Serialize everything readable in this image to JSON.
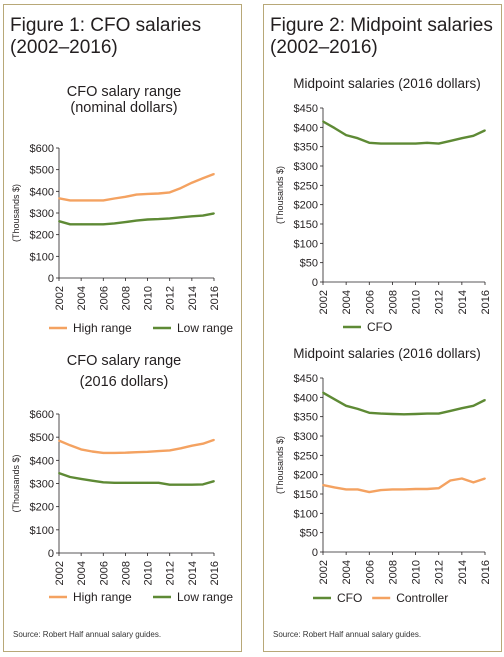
{
  "figures": {
    "fig1": {
      "title_line1": "Figure 1: CFO salaries",
      "title_line2": "(2002–2016)",
      "source": "Source: Robert Half annual salary guides."
    },
    "fig2": {
      "title_line1": "Figure 2: Midpoint salaries",
      "title_line2": "(2002–2016)",
      "source": "Source: Robert Half annual salary guides."
    }
  },
  "colors": {
    "high": "#f4a261",
    "low": "#5e8a35",
    "cfo": "#5e8a35",
    "controller": "#f4a261",
    "axis": "#231f20",
    "border": "#b8a878"
  },
  "chart_data": [
    {
      "id": "c1",
      "type": "line",
      "title": "CFO salary range",
      "subtitle": "(nominal dollars)",
      "ylabel": "(Thousands $)",
      "ylim": [
        0,
        600
      ],
      "yticks": [
        0,
        100,
        200,
        300,
        400,
        500,
        600
      ],
      "ytick_labels": [
        "0",
        "$100",
        "$200",
        "$300",
        "$400",
        "$500",
        "$600"
      ],
      "xticks": [
        2002,
        2004,
        2006,
        2008,
        2010,
        2012,
        2014,
        2016
      ],
      "x": [
        2002,
        2003,
        2004,
        2005,
        2006,
        2007,
        2008,
        2009,
        2010,
        2011,
        2012,
        2013,
        2014,
        2015,
        2016
      ],
      "series": [
        {
          "name": "High range",
          "color": "#f4a261",
          "values": [
            368,
            358,
            358,
            358,
            358,
            367,
            375,
            385,
            388,
            390,
            395,
            415,
            440,
            460,
            480
          ]
        },
        {
          "name": "Low range",
          "color": "#5e8a35",
          "values": [
            262,
            248,
            248,
            248,
            248,
            252,
            258,
            265,
            270,
            272,
            275,
            280,
            285,
            288,
            298
          ]
        }
      ],
      "legend": "bottom"
    },
    {
      "id": "c2",
      "type": "line",
      "title": "CFO salary range",
      "subtitle": "(2016 dollars)",
      "ylabel": "(Thousands $)",
      "ylim": [
        0,
        600
      ],
      "yticks": [
        0,
        100,
        200,
        300,
        400,
        500,
        600
      ],
      "ytick_labels": [
        "0",
        "$100",
        "$200",
        "$300",
        "$400",
        "$500",
        "$600"
      ],
      "xticks": [
        2002,
        2004,
        2006,
        2008,
        2010,
        2012,
        2014,
        2016
      ],
      "x": [
        2002,
        2003,
        2004,
        2005,
        2006,
        2007,
        2008,
        2009,
        2010,
        2011,
        2012,
        2013,
        2014,
        2015,
        2016
      ],
      "series": [
        {
          "name": "High range",
          "color": "#f4a261",
          "values": [
            485,
            465,
            447,
            438,
            432,
            432,
            433,
            435,
            437,
            440,
            443,
            452,
            463,
            472,
            488
          ]
        },
        {
          "name": "Low range",
          "color": "#5e8a35",
          "values": [
            345,
            328,
            320,
            312,
            305,
            303,
            303,
            303,
            303,
            303,
            295,
            295,
            295,
            296,
            310
          ]
        }
      ],
      "legend": "bottom"
    },
    {
      "id": "c3",
      "type": "line",
      "title": "Midpoint salaries (2016 dollars)",
      "subtitle": "",
      "ylabel": "(Thousands $)",
      "ylim": [
        0,
        450
      ],
      "yticks": [
        0,
        50,
        100,
        150,
        200,
        250,
        300,
        350,
        400,
        450
      ],
      "ytick_labels": [
        "0",
        "$50",
        "$100",
        "$150",
        "$200",
        "$250",
        "$300",
        "$350",
        "$400",
        "$450"
      ],
      "xticks": [
        2002,
        2004,
        2006,
        2008,
        2010,
        2012,
        2014,
        2016
      ],
      "x": [
        2002,
        2003,
        2004,
        2005,
        2006,
        2007,
        2008,
        2009,
        2010,
        2011,
        2012,
        2013,
        2014,
        2015,
        2016
      ],
      "series": [
        {
          "name": "CFO",
          "color": "#5e8a35",
          "values": [
            415,
            398,
            380,
            372,
            360,
            358,
            358,
            358,
            358,
            360,
            358,
            365,
            372,
            378,
            392
          ]
        }
      ],
      "legend": "bottom"
    },
    {
      "id": "c4",
      "type": "line",
      "title": "Midpoint salaries (2016 dollars)",
      "subtitle": "",
      "ylabel": "(Thousands $)",
      "ylim": [
        0,
        450
      ],
      "yticks": [
        0,
        50,
        100,
        150,
        200,
        250,
        300,
        350,
        400,
        450
      ],
      "ytick_labels": [
        "0",
        "$50",
        "$100",
        "$150",
        "$200",
        "$250",
        "$300",
        "$350",
        "$400",
        "$450"
      ],
      "xticks": [
        2002,
        2004,
        2006,
        2008,
        2010,
        2012,
        2014,
        2016
      ],
      "x": [
        2002,
        2003,
        2004,
        2005,
        2006,
        2007,
        2008,
        2009,
        2010,
        2011,
        2012,
        2013,
        2014,
        2015,
        2016
      ],
      "series": [
        {
          "name": "CFO",
          "color": "#5e8a35",
          "values": [
            412,
            395,
            378,
            370,
            360,
            358,
            357,
            356,
            357,
            358,
            358,
            365,
            372,
            378,
            393
          ]
        },
        {
          "name": "Controller",
          "color": "#f4a261",
          "values": [
            173,
            167,
            162,
            162,
            155,
            160,
            162,
            162,
            163,
            163,
            165,
            185,
            190,
            180,
            190
          ]
        }
      ],
      "legend": "bottom"
    }
  ]
}
